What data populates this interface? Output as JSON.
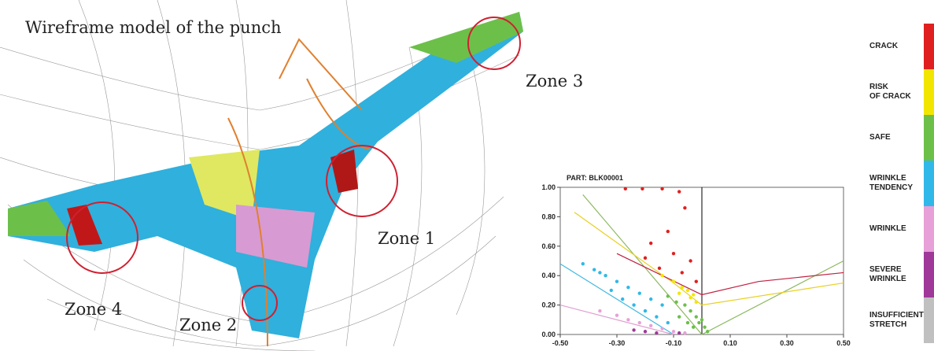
{
  "render": {
    "annotations": [
      "Wireframe model of the punch",
      "Zone 1",
      "Zone 2",
      "Zone 3",
      "Zone 4"
    ]
  },
  "chart_data": {
    "type": "scatter",
    "title": "PART: BLK00001",
    "xlim": [
      -0.5,
      0.5
    ],
    "ylim": [
      0,
      1
    ],
    "xticks": [
      {
        "value": -0.5,
        "label": "-0.50"
      },
      {
        "value": -0.3,
        "label": "-0.30"
      },
      {
        "value": -0.1,
        "label": "-0.10"
      },
      {
        "value": 0.1,
        "label": "0.10"
      },
      {
        "value": 0.3,
        "label": "0.30"
      },
      {
        "value": 0.5,
        "label": "0.50"
      }
    ],
    "yticks": [
      {
        "value": 0,
        "label": "0.00"
      },
      {
        "value": 0.2,
        "label": "0.20"
      },
      {
        "value": 0.4,
        "label": "0.40"
      },
      {
        "value": 0.6,
        "label": "0.60"
      },
      {
        "value": 0.8,
        "label": "0.80"
      },
      {
        "value": 1,
        "label": "1.00"
      }
    ],
    "zero_line": 0,
    "series": [
      {
        "name": "CRACK",
        "color": "#e02020",
        "x": [
          -0.27,
          -0.21,
          -0.14,
          -0.08,
          -0.06,
          -0.12,
          -0.18,
          -0.1,
          -0.04,
          -0.15,
          -0.07,
          -0.02,
          -0.2
        ],
        "values": [
          0.99,
          0.99,
          0.99,
          0.97,
          0.86,
          0.7,
          0.62,
          0.55,
          0.5,
          0.45,
          0.42,
          0.36,
          0.52
        ]
      },
      {
        "name": "RISK OF CRACK",
        "color": "#f2e600",
        "x": [
          -0.14,
          -0.1,
          -0.07,
          -0.05,
          -0.03,
          -0.02,
          -0.08,
          -0.04
        ],
        "values": [
          0.4,
          0.36,
          0.32,
          0.3,
          0.27,
          0.22,
          0.28,
          0.25
        ]
      },
      {
        "name": "SAFE",
        "color": "#6cc04a",
        "x": [
          -0.12,
          -0.09,
          -0.06,
          -0.04,
          -0.02,
          -0.01,
          0.01,
          0.02,
          -0.08,
          -0.05,
          -0.03,
          0.0
        ],
        "values": [
          0.26,
          0.22,
          0.2,
          0.16,
          0.12,
          0.08,
          0.05,
          0.02,
          0.12,
          0.08,
          0.05,
          0.1
        ]
      },
      {
        "name": "WRINKLE TENDENCY",
        "color": "#30b8e8",
        "x": [
          -0.42,
          -0.38,
          -0.34,
          -0.3,
          -0.26,
          -0.22,
          -0.18,
          -0.14,
          -0.32,
          -0.28,
          -0.24,
          -0.2,
          -0.16,
          -0.12,
          -0.36
        ],
        "values": [
          0.48,
          0.44,
          0.4,
          0.36,
          0.32,
          0.28,
          0.24,
          0.2,
          0.3,
          0.24,
          0.2,
          0.16,
          0.12,
          0.08,
          0.42
        ]
      },
      {
        "name": "WRINKLE",
        "color": "#e8a0d8",
        "x": [
          -0.36,
          -0.3,
          -0.26,
          -0.22,
          -0.18,
          -0.14,
          -0.1,
          -0.06
        ],
        "values": [
          0.16,
          0.13,
          0.1,
          0.08,
          0.06,
          0.04,
          0.02,
          0.01
        ]
      },
      {
        "name": "SEVERE WRINKLE",
        "color": "#a0389a",
        "x": [
          -0.24,
          -0.2,
          -0.16,
          -0.08
        ],
        "values": [
          0.03,
          0.02,
          0.01,
          0.01
        ]
      },
      {
        "name": "INSUFFICIENT STRETCH",
        "color": "#c0c0c0",
        "x": [],
        "values": []
      }
    ],
    "curves": [
      {
        "color": "#8cb860",
        "x": [
          -0.42,
          0,
          0.5
        ],
        "y": [
          0.95,
          0.0,
          0.5
        ]
      },
      {
        "color": "#e8d020",
        "x": [
          -0.45,
          -0.1,
          0,
          0.5
        ],
        "y": [
          0.83,
          0.35,
          0.2,
          0.35
        ]
      },
      {
        "color": "#c02040",
        "x": [
          -0.3,
          0,
          0.2,
          0.5
        ],
        "y": [
          0.55,
          0.27,
          0.36,
          0.42
        ]
      },
      {
        "color": "#40b8e0",
        "x": [
          -0.5,
          -0.1
        ],
        "y": [
          0.48,
          0.0
        ]
      },
      {
        "color": "#e0a0d0",
        "x": [
          -0.5,
          -0.1
        ],
        "y": [
          0.2,
          0.0
        ]
      }
    ]
  }
}
